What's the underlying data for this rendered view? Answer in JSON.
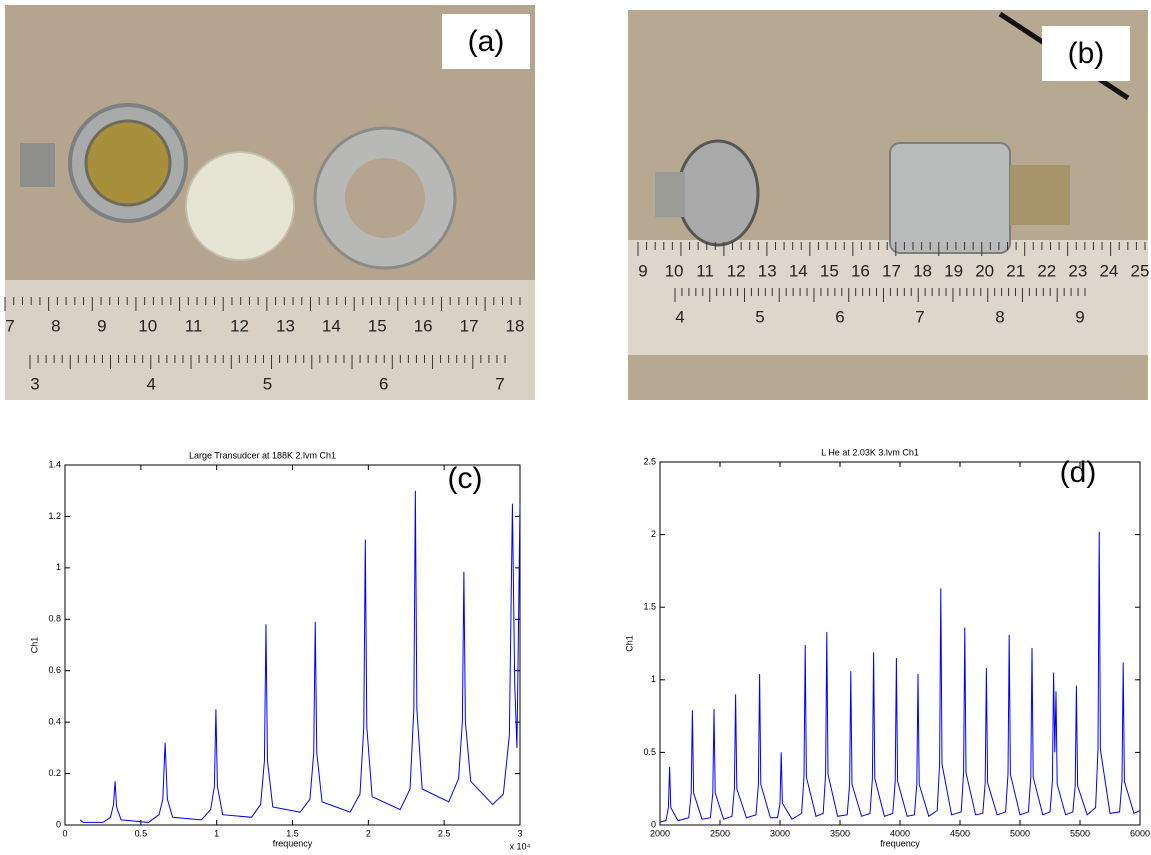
{
  "panels": [
    {
      "label": "(a)",
      "ruler_top": [
        7,
        8,
        9,
        10,
        11,
        12,
        13,
        14,
        15,
        16,
        17,
        18
      ],
      "ruler_bottom": [
        3,
        4,
        5,
        6,
        7
      ]
    },
    {
      "label": "(b)",
      "ruler_top": [
        9,
        10,
        11,
        12,
        13,
        14,
        15,
        16,
        17,
        18,
        19,
        20,
        21,
        22,
        23,
        24,
        25
      ],
      "ruler_bottom": [
        4,
        5,
        6,
        7,
        8,
        9
      ]
    }
  ],
  "chart_data": [
    {
      "type": "line",
      "title": "Large Transudcer at 188K 2.lvm Ch1",
      "x_label": "frequency",
      "y_label": "Ch1",
      "annotation": "(c)",
      "axis_multiplier": "x 10⁴",
      "xlim": [
        0,
        30000
      ],
      "xticks": [
        0,
        {
          "value": 5000,
          "label": "0.5"
        },
        {
          "value": 10000,
          "label": "1"
        },
        {
          "value": 15000,
          "label": "1.5"
        },
        {
          "value": 20000,
          "label": "2"
        },
        {
          "value": 25000,
          "label": "2.5"
        },
        {
          "value": 30000,
          "label": "3"
        }
      ],
      "ylim": [
        0,
        1.4
      ],
      "yticks": [
        0,
        0.2,
        0.4,
        0.6,
        0.8,
        1,
        1.2,
        1.4
      ],
      "x": [
        1000,
        1200,
        2500,
        3000,
        3200,
        3300,
        3400,
        3700,
        5500,
        6200,
        6450,
        6600,
        6750,
        7100,
        9000,
        9600,
        9850,
        9950,
        10050,
        10400,
        12300,
        12900,
        13150,
        13250,
        13350,
        13700,
        15500,
        16150,
        16400,
        16500,
        16600,
        16950,
        18800,
        19450,
        19700,
        19800,
        19900,
        20250,
        22100,
        22750,
        23000,
        23100,
        23200,
        23550,
        25300,
        25950,
        26200,
        26300,
        26400,
        26750,
        28200,
        28900,
        29300,
        29500,
        29650,
        29800,
        30000
      ],
      "series": [
        {
          "color": "#0000ff",
          "values": [
            0.02,
            0.01,
            0.01,
            0.03,
            0.08,
            0.17,
            0.07,
            0.02,
            0.01,
            0.04,
            0.1,
            0.32,
            0.1,
            0.03,
            0.02,
            0.06,
            0.15,
            0.45,
            0.15,
            0.04,
            0.03,
            0.08,
            0.25,
            0.78,
            0.25,
            0.07,
            0.05,
            0.1,
            0.28,
            0.79,
            0.28,
            0.09,
            0.05,
            0.12,
            0.38,
            1.11,
            0.38,
            0.11,
            0.06,
            0.14,
            0.45,
            1.3,
            0.45,
            0.14,
            0.09,
            0.18,
            0.4,
            0.985,
            0.4,
            0.17,
            0.08,
            0.12,
            0.35,
            1.25,
            0.55,
            0.3,
            1.25
          ]
        }
      ]
    },
    {
      "type": "line",
      "title": "L He at 2.03K 3.lvm Ch1",
      "x_label": "frequency",
      "y_label": "Ch1",
      "annotation": "(d)",
      "xlim": [
        2000,
        6000
      ],
      "xticks": [
        2000,
        2500,
        3000,
        3500,
        4000,
        4500,
        5000,
        5500,
        6000
      ],
      "ylim": [
        0,
        2.5
      ],
      "yticks": [
        0,
        0.5,
        1,
        1.5,
        2,
        2.5
      ],
      "x": [
        2000,
        2050,
        2070,
        2080,
        2090,
        2150,
        2240,
        2260,
        2270,
        2280,
        2350,
        2420,
        2440,
        2450,
        2460,
        2530,
        2600,
        2620,
        2630,
        2640,
        2720,
        2800,
        2820,
        2830,
        2840,
        2920,
        2980,
        3000,
        3010,
        3020,
        3100,
        3180,
        3200,
        3210,
        3220,
        3300,
        3360,
        3380,
        3390,
        3400,
        3480,
        3560,
        3580,
        3590,
        3600,
        3680,
        3750,
        3770,
        3780,
        3790,
        3870,
        3940,
        3960,
        3970,
        3980,
        4060,
        4120,
        4140,
        4150,
        4160,
        4240,
        4310,
        4330,
        4340,
        4350,
        4430,
        4510,
        4530,
        4540,
        4550,
        4630,
        4690,
        4710,
        4720,
        4730,
        4810,
        4880,
        4900,
        4910,
        4920,
        5000,
        5070,
        5090,
        5100,
        5110,
        5190,
        5250,
        5270,
        5280,
        5290,
        5300,
        5310,
        5380,
        5440,
        5460,
        5470,
        5480,
        5560,
        5630,
        5650,
        5660,
        5670,
        5750,
        5830,
        5850,
        5860,
        5870,
        5950,
        6000
      ],
      "series": [
        {
          "color": "#0000ff",
          "values": [
            0.02,
            0.03,
            0.12,
            0.4,
            0.12,
            0.03,
            0.05,
            0.22,
            0.79,
            0.22,
            0.04,
            0.05,
            0.22,
            0.8,
            0.22,
            0.04,
            0.06,
            0.25,
            0.9,
            0.25,
            0.05,
            0.07,
            0.28,
            1.04,
            0.28,
            0.05,
            0.05,
            0.15,
            0.5,
            0.15,
            0.04,
            0.08,
            0.33,
            1.24,
            0.33,
            0.06,
            0.08,
            0.35,
            1.33,
            0.35,
            0.06,
            0.07,
            0.28,
            1.06,
            0.28,
            0.06,
            0.08,
            0.32,
            1.19,
            0.32,
            0.06,
            0.08,
            0.3,
            1.15,
            0.3,
            0.06,
            0.07,
            0.28,
            1.04,
            0.28,
            0.06,
            0.1,
            0.42,
            1.63,
            0.42,
            0.07,
            0.09,
            0.36,
            1.36,
            0.36,
            0.07,
            0.08,
            0.29,
            1.08,
            0.29,
            0.07,
            0.09,
            0.35,
            1.31,
            0.35,
            0.07,
            0.09,
            0.33,
            1.22,
            0.33,
            0.07,
            0.09,
            0.3,
            1.05,
            0.5,
            0.92,
            0.28,
            0.07,
            0.09,
            0.27,
            0.96,
            0.27,
            0.07,
            0.12,
            0.52,
            2.02,
            0.52,
            0.08,
            0.09,
            0.3,
            1.12,
            0.3,
            0.08,
            0.1
          ]
        }
      ]
    }
  ]
}
